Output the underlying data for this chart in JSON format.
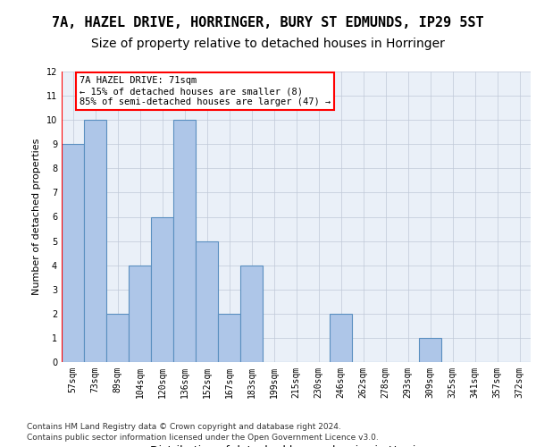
{
  "title1": "7A, HAZEL DRIVE, HORRINGER, BURY ST EDMUNDS, IP29 5ST",
  "title2": "Size of property relative to detached houses in Horringer",
  "xlabel": "Distribution of detached houses by size in Horringer",
  "ylabel": "Number of detached properties",
  "bins": [
    "57sqm",
    "73sqm",
    "89sqm",
    "104sqm",
    "120sqm",
    "136sqm",
    "152sqm",
    "167sqm",
    "183sqm",
    "199sqm",
    "215sqm",
    "230sqm",
    "246sqm",
    "262sqm",
    "278sqm",
    "293sqm",
    "309sqm",
    "325sqm",
    "341sqm",
    "357sqm",
    "372sqm"
  ],
  "bar_heights": [
    9,
    10,
    2,
    4,
    6,
    10,
    5,
    2,
    4,
    0,
    0,
    0,
    2,
    0,
    0,
    0,
    1,
    0,
    0,
    0,
    0
  ],
  "bar_color": "#aec6e8",
  "bar_edge_color": "#5a8fc0",
  "vline_color": "red",
  "annotation_text": "7A HAZEL DRIVE: 71sqm\n← 15% of detached houses are smaller (8)\n85% of semi-detached houses are larger (47) →",
  "ylim": [
    0,
    12
  ],
  "yticks": [
    0,
    1,
    2,
    3,
    4,
    5,
    6,
    7,
    8,
    9,
    10,
    11,
    12
  ],
  "footer1": "Contains HM Land Registry data © Crown copyright and database right 2024.",
  "footer2": "Contains public sector information licensed under the Open Government Licence v3.0.",
  "plot_background_color": "#eaf0f8",
  "title1_fontsize": 11,
  "title2_fontsize": 10
}
